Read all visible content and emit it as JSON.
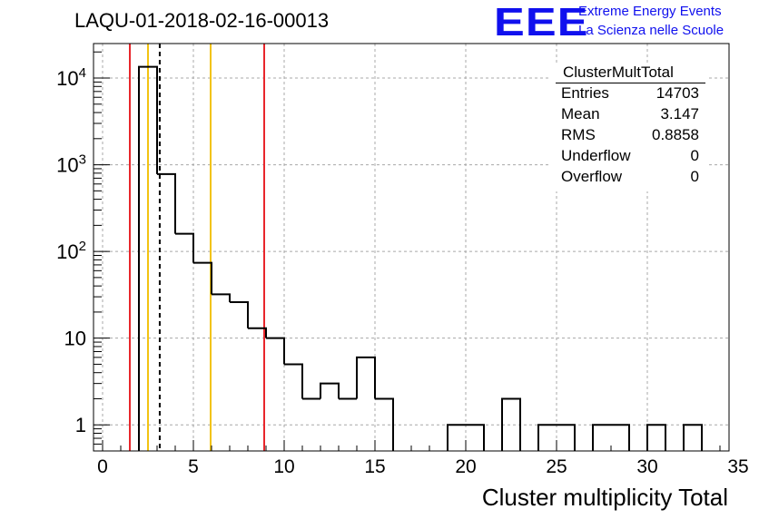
{
  "header": {
    "title": "LAQU-01-2018-02-16-00013",
    "logo_text": "EEE",
    "logo_line1": "Extreme Energy Events",
    "logo_line2": "La Scienza nelle Scuole",
    "logo_color": "#1010ee"
  },
  "stats_box": {
    "title": "ClusterMultTotal",
    "rows": [
      {
        "label": "Entries",
        "value": "14703"
      },
      {
        "label": "Mean",
        "value": "3.147"
      },
      {
        "label": "RMS",
        "value": "0.8858"
      },
      {
        "label": "Underflow",
        "value": "0"
      },
      {
        "label": "Overflow",
        "value": "0"
      }
    ]
  },
  "chart_data": {
    "type": "histogram",
    "title": "LAQU-01-2018-02-16-00013",
    "xlabel": "Cluster multiplicity Total",
    "ylabel": "",
    "xlim": [
      -0.5,
      34.5
    ],
    "ylim": [
      0.5,
      25000
    ],
    "yscale": "log",
    "grid": true,
    "x_ticks": [
      0,
      5,
      10,
      15,
      20,
      25,
      30,
      35
    ],
    "y_ticks": [
      {
        "value": 1,
        "label": "1"
      },
      {
        "value": 10,
        "label": "10"
      },
      {
        "value": 100,
        "label": "10^2"
      },
      {
        "value": 1000,
        "label": "10^3"
      },
      {
        "value": 10000,
        "label": "10^4"
      }
    ],
    "bin_width": 1,
    "bins": [
      {
        "x": 2.5,
        "count": 13500
      },
      {
        "x": 3.5,
        "count": 780
      },
      {
        "x": 4.5,
        "count": 160
      },
      {
        "x": 5.5,
        "count": 74
      },
      {
        "x": 6.5,
        "count": 32
      },
      {
        "x": 7.5,
        "count": 26
      },
      {
        "x": 8.5,
        "count": 13
      },
      {
        "x": 9.5,
        "count": 10
      },
      {
        "x": 10.5,
        "count": 5
      },
      {
        "x": 11.5,
        "count": 2
      },
      {
        "x": 12.5,
        "count": 3
      },
      {
        "x": 13.5,
        "count": 2
      },
      {
        "x": 14.5,
        "count": 6
      },
      {
        "x": 15.5,
        "count": 2
      },
      {
        "x": 19.5,
        "count": 1
      },
      {
        "x": 20.5,
        "count": 1
      },
      {
        "x": 22.5,
        "count": 2
      },
      {
        "x": 24.5,
        "count": 1
      },
      {
        "x": 25.5,
        "count": 1
      },
      {
        "x": 27.5,
        "count": 1
      },
      {
        "x": 28.5,
        "count": 1
      },
      {
        "x": 30.5,
        "count": 1
      },
      {
        "x": 32.5,
        "count": 1
      }
    ],
    "markers": [
      {
        "x": 1.5,
        "color": "#e8262b",
        "style": "solid"
      },
      {
        "x": 2.5,
        "color": "#f2c311",
        "style": "solid"
      },
      {
        "x": 3.147,
        "color": "#000000",
        "style": "dashed"
      },
      {
        "x": 5.95,
        "color": "#f2c311",
        "style": "solid"
      },
      {
        "x": 8.9,
        "color": "#e8262b",
        "style": "solid"
      }
    ]
  }
}
